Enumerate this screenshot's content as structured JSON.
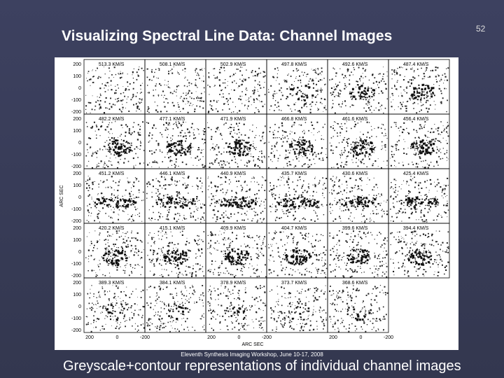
{
  "slide": {
    "title": "Visualizing Spectral Line Data: Channel Images",
    "page_number": "52",
    "figure": {
      "panels": [
        [
          "513.3 KM/S",
          "508.1 KM/S",
          "502.9 KM/S",
          "497.8 KM/S",
          "492.6 KM/S",
          "487.4 KM/S"
        ],
        [
          "482.2 KM/S",
          "477.1 KM/S",
          "471.9 KM/S",
          "466.8 KM/S",
          "461.6 KM/S",
          "456.4 KM/S"
        ],
        [
          "451.2 KM/S",
          "446.1 KM/S",
          "440.9 KM/S",
          "435.7 KM/S",
          "430.6 KM/S",
          "425.4 KM/S"
        ],
        [
          "420.2 KM/S",
          "415.1 KM/S",
          "409.9 KM/S",
          "404.7 KM/S",
          "399.6 KM/S",
          "394.4 KM/S"
        ],
        [
          "389.3 KM/S",
          "384.1 KM/S",
          "378.9 KM/S",
          "373.7 KM/S",
          "368.6 KM/S"
        ]
      ],
      "y_ticks": [
        "200",
        "100",
        "0",
        "-100",
        "-200"
      ],
      "x_ticks": [
        "200",
        "0",
        "-200"
      ],
      "y_axis_label": "ARC SEC",
      "x_axis_label": "ARC SEC"
    },
    "footer": "Eleventh Synthesis Imaging Workshop, June 10-17, 2008",
    "caption": "Greyscale+contour representations of individual channel images"
  }
}
